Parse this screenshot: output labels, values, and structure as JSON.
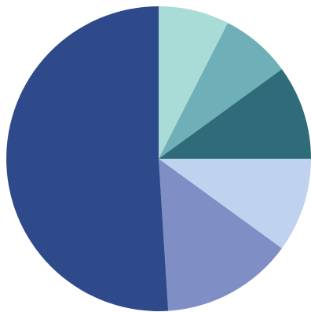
{
  "chart_data": {
    "type": "pie",
    "title": "",
    "start_angle_deg": -90,
    "direction": "clockwise",
    "slices": [
      {
        "value": 7.5,
        "color": "#a9dcd6"
      },
      {
        "value": 7.5,
        "color": "#6fb0b8"
      },
      {
        "value": 10.0,
        "color": "#2f6b78"
      },
      {
        "value": 10.0,
        "color": "#bfd3ef"
      },
      {
        "value": 14.0,
        "color": "#7f8fc6"
      },
      {
        "value": 51.0,
        "color": "#2f4a8b"
      }
    ]
  }
}
